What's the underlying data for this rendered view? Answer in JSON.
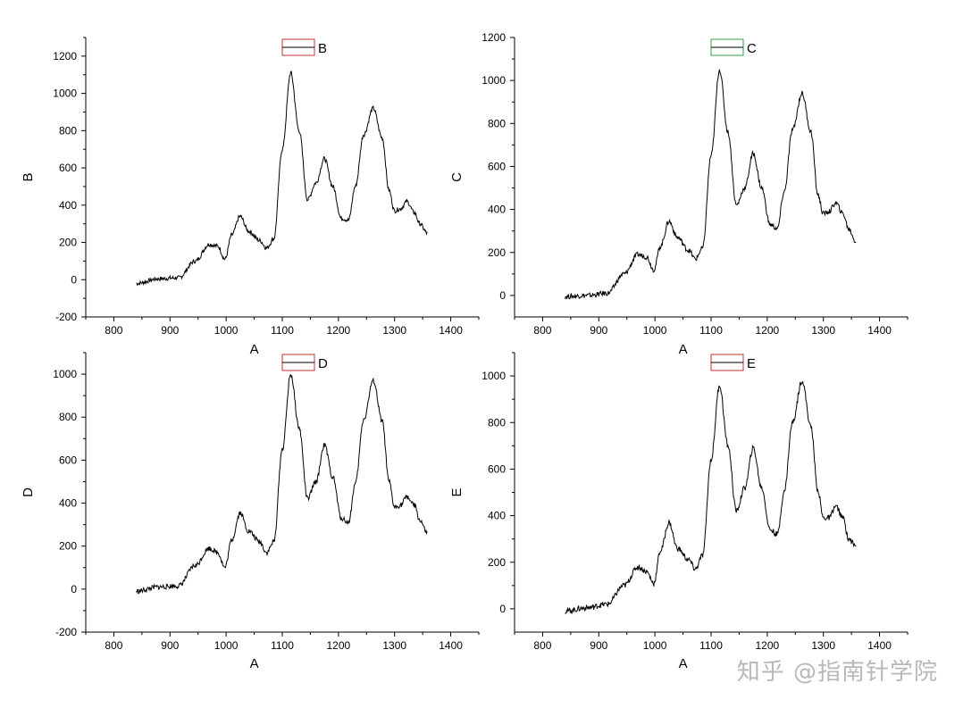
{
  "watermark": "知乎 @指南针学院",
  "chart_data": [
    {
      "type": "line",
      "xlabel": "A",
      "ylabel": "B",
      "legend": "B",
      "legend_placement": "top-center",
      "legend_color": "#c03030",
      "xlim": [
        750,
        1450
      ],
      "ylim": [
        -200,
        1300
      ],
      "xticks": [
        800,
        900,
        1000,
        1100,
        1200,
        1300,
        1400
      ],
      "yticks": [
        -200,
        0,
        200,
        400,
        600,
        800,
        1000,
        1200
      ],
      "grid": false,
      "series": [
        {
          "x": [
            840,
            880,
            915,
            945,
            970,
            985,
            998,
            1010,
            1025,
            1040,
            1060,
            1072,
            1085,
            1100,
            1115,
            1130,
            1145,
            1160,
            1175,
            1190,
            1205,
            1218,
            1230,
            1245,
            1262,
            1278,
            1290,
            1300,
            1310,
            1322,
            1335,
            1345,
            1358
          ],
          "y": [
            -20,
            5,
            10,
            100,
            190,
            180,
            110,
            240,
            340,
            260,
            210,
            170,
            220,
            700,
            1110,
            800,
            430,
            520,
            650,
            500,
            330,
            320,
            500,
            780,
            920,
            760,
            480,
            370,
            380,
            420,
            360,
            300,
            250
          ]
        }
      ]
    },
    {
      "type": "line",
      "xlabel": "A",
      "ylabel": "C",
      "legend": "C",
      "legend_placement": "top-center",
      "legend_color": "#30a040",
      "xlim": [
        750,
        1450
      ],
      "ylim": [
        -100,
        1200
      ],
      "xticks": [
        800,
        900,
        1000,
        1100,
        1200,
        1300,
        1400
      ],
      "yticks": [
        0,
        200,
        400,
        600,
        800,
        1000,
        1200
      ],
      "grid": false,
      "series": [
        {
          "x": [
            840,
            880,
            915,
            945,
            970,
            985,
            998,
            1010,
            1025,
            1040,
            1060,
            1072,
            1085,
            1100,
            1115,
            1130,
            1145,
            1160,
            1175,
            1190,
            1205,
            1218,
            1230,
            1245,
            1262,
            1278,
            1290,
            1300,
            1310,
            1322,
            1335,
            1345,
            1358
          ],
          "y": [
            -5,
            0,
            10,
            100,
            190,
            180,
            120,
            230,
            345,
            270,
            210,
            170,
            220,
            650,
            1050,
            760,
            420,
            500,
            660,
            500,
            330,
            310,
            480,
            770,
            940,
            760,
            470,
            380,
            390,
            430,
            380,
            310,
            250
          ]
        }
      ]
    },
    {
      "type": "line",
      "xlabel": "A",
      "ylabel": "D",
      "legend": "D",
      "legend_placement": "top-center",
      "legend_color": "#c03030",
      "xlim": [
        750,
        1450
      ],
      "ylim": [
        -200,
        1100
      ],
      "xticks": [
        800,
        900,
        1000,
        1100,
        1200,
        1300,
        1400
      ],
      "yticks": [
        -200,
        0,
        200,
        400,
        600,
        800,
        1000
      ],
      "grid": false,
      "series": [
        {
          "x": [
            840,
            880,
            915,
            945,
            970,
            985,
            998,
            1010,
            1025,
            1040,
            1060,
            1072,
            1085,
            1100,
            1115,
            1130,
            1145,
            1160,
            1175,
            1190,
            1205,
            1218,
            1230,
            1245,
            1262,
            1278,
            1290,
            1300,
            1310,
            1322,
            1335,
            1345,
            1358
          ],
          "y": [
            -10,
            10,
            15,
            110,
            190,
            170,
            100,
            230,
            355,
            270,
            220,
            170,
            220,
            650,
            1000,
            750,
            420,
            500,
            670,
            520,
            330,
            310,
            490,
            790,
            970,
            780,
            500,
            380,
            390,
            430,
            390,
            320,
            260
          ]
        }
      ]
    },
    {
      "type": "line",
      "xlabel": "A",
      "ylabel": "E",
      "legend": "E",
      "legend_placement": "top-center",
      "legend_color": "#c03030",
      "xlim": [
        750,
        1450
      ],
      "ylim": [
        -100,
        1100
      ],
      "xticks": [
        800,
        900,
        1000,
        1100,
        1200,
        1300,
        1400
      ],
      "yticks": [
        0,
        200,
        400,
        600,
        800,
        1000
      ],
      "grid": false,
      "series": [
        {
          "x": [
            840,
            880,
            915,
            945,
            970,
            985,
            998,
            1010,
            1025,
            1040,
            1060,
            1072,
            1085,
            1100,
            1115,
            1130,
            1145,
            1160,
            1175,
            1190,
            1205,
            1218,
            1230,
            1245,
            1262,
            1278,
            1290,
            1300,
            1310,
            1322,
            1335,
            1345,
            1358
          ],
          "y": [
            -10,
            5,
            20,
            100,
            180,
            160,
            110,
            250,
            370,
            260,
            210,
            170,
            230,
            640,
            960,
            700,
            420,
            520,
            690,
            520,
            340,
            320,
            500,
            800,
            980,
            780,
            510,
            390,
            390,
            440,
            390,
            300,
            270
          ]
        }
      ]
    }
  ]
}
